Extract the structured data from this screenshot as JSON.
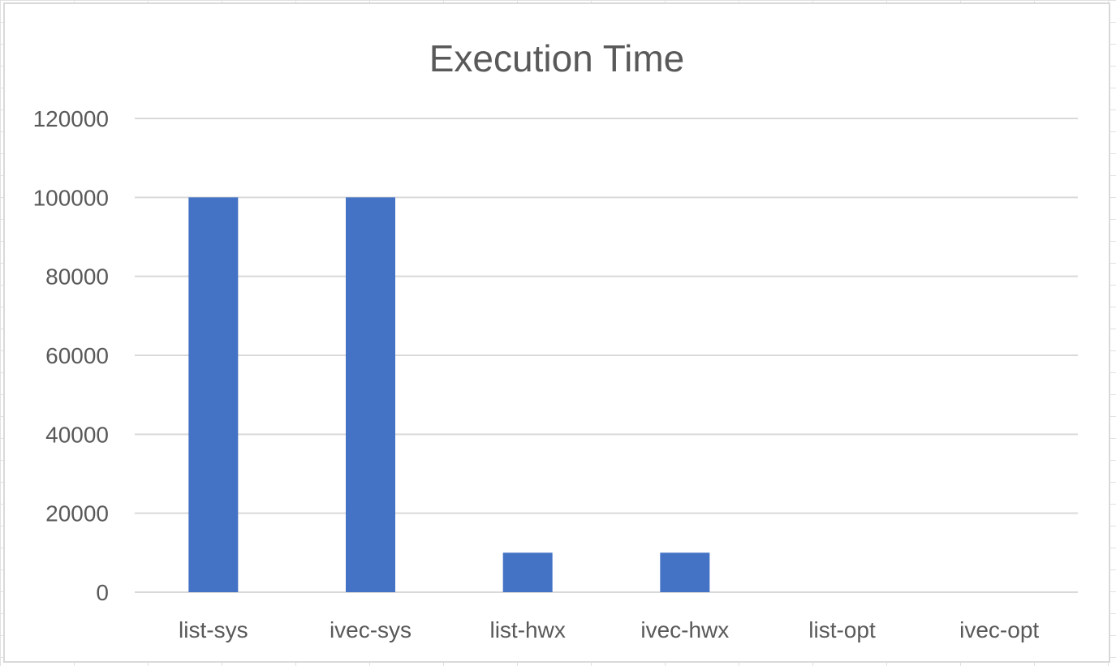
{
  "chart_data": {
    "type": "bar",
    "title": "Execution Time",
    "categories": [
      "list-sys",
      "ivec-sys",
      "list-hwx",
      "ivec-hwx",
      "list-opt",
      "ivec-opt"
    ],
    "values": [
      100000,
      100000,
      10000,
      10000,
      0,
      0
    ],
    "ylim": [
      0,
      120000
    ],
    "yticks": [
      0,
      20000,
      40000,
      60000,
      80000,
      100000,
      120000
    ],
    "grid": true,
    "bar_color": "#4472c4",
    "gridline_color": "#d9d9d9",
    "text_color": "#595959"
  }
}
